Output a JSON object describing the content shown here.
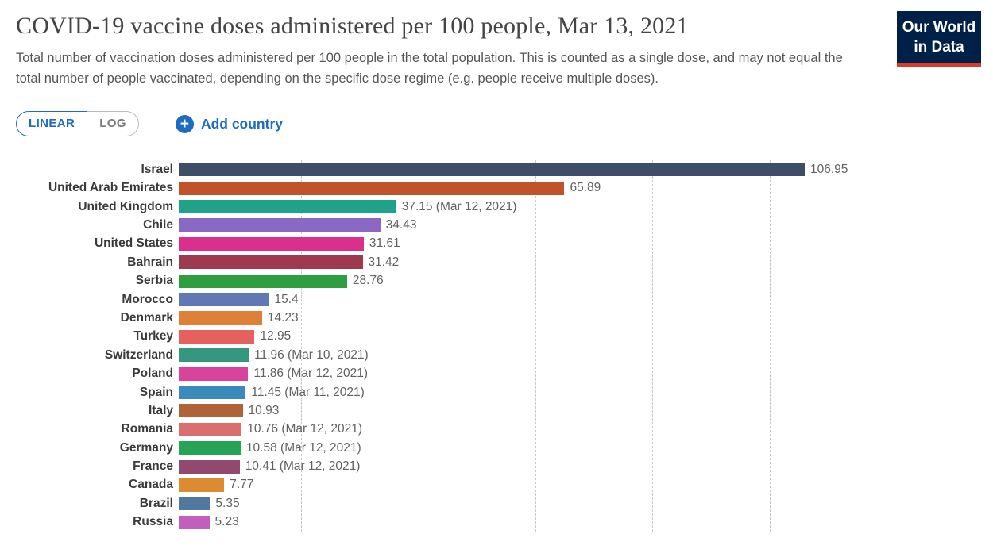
{
  "header": {
    "title": "COVID-19 vaccine doses administered per 100 people, Mar 13, 2021",
    "subtitle": "Total number of vaccination doses administered per 100 people in the total population. This is counted as a single dose, and may not equal the total number of people vaccinated, depending on the specific dose regime (e.g. people receive multiple doses).",
    "logo": {
      "line1": "Our World",
      "line2": "in Data",
      "bg_color": "#002147",
      "accent_color": "#d93a2b"
    }
  },
  "controls": {
    "scale_toggle": {
      "options": [
        {
          "label": "LINEAR",
          "active": true
        },
        {
          "label": "LOG",
          "active": false
        }
      ]
    },
    "add_country_label": "Add country",
    "accent_blue": "#1d6cc0"
  },
  "chart_data": {
    "type": "bar",
    "orientation": "horizontal",
    "title": "COVID-19 vaccine doses administered per 100 people, Mar 13, 2021",
    "xlabel": "",
    "ylabel": "",
    "xlim": [
      0,
      106.95
    ],
    "gridlines": [
      20,
      40,
      60,
      80,
      100
    ],
    "grid_style": "dashed",
    "legend": "none",
    "categories": [
      "Israel",
      "United Arab Emirates",
      "United Kingdom",
      "Chile",
      "United States",
      "Bahrain",
      "Serbia",
      "Morocco",
      "Denmark",
      "Turkey",
      "Switzerland",
      "Poland",
      "Spain",
      "Italy",
      "Romania",
      "Germany",
      "France",
      "Canada",
      "Brazil",
      "Russia"
    ],
    "values": [
      106.95,
      65.89,
      37.15,
      34.43,
      31.61,
      31.42,
      28.76,
      15.4,
      14.23,
      12.95,
      11.96,
      11.86,
      11.45,
      10.93,
      10.76,
      10.58,
      10.41,
      7.77,
      5.35,
      5.23
    ],
    "bars": [
      {
        "country": "Israel",
        "value": 106.95,
        "value_label": "106.95",
        "color": "#3d4e66"
      },
      {
        "country": "United Arab Emirates",
        "value": 65.89,
        "value_label": "65.89",
        "color": "#c1532b"
      },
      {
        "country": "United Kingdom",
        "value": 37.15,
        "value_label": "37.15 (Mar 12, 2021)",
        "color": "#1fa287"
      },
      {
        "country": "Chile",
        "value": 34.43,
        "value_label": "34.43",
        "color": "#8a68c4"
      },
      {
        "country": "United States",
        "value": 31.61,
        "value_label": "31.61",
        "color": "#db2f8d"
      },
      {
        "country": "Bahrain",
        "value": 31.42,
        "value_label": "31.42",
        "color": "#9e3a4f"
      },
      {
        "country": "Serbia",
        "value": 28.76,
        "value_label": "28.76",
        "color": "#2f9e41"
      },
      {
        "country": "Morocco",
        "value": 15.4,
        "value_label": "15.4",
        "color": "#6079b2"
      },
      {
        "country": "Denmark",
        "value": 14.23,
        "value_label": "14.23",
        "color": "#e08036"
      },
      {
        "country": "Turkey",
        "value": 12.95,
        "value_label": "12.95",
        "color": "#e5615e"
      },
      {
        "country": "Switzerland",
        "value": 11.96,
        "value_label": "11.96 (Mar 10, 2021)",
        "color": "#35977f"
      },
      {
        "country": "Poland",
        "value": 11.86,
        "value_label": "11.86 (Mar 12, 2021)",
        "color": "#d8439c"
      },
      {
        "country": "Spain",
        "value": 11.45,
        "value_label": "11.45 (Mar 11, 2021)",
        "color": "#3b8abc"
      },
      {
        "country": "Italy",
        "value": 10.93,
        "value_label": "10.93",
        "color": "#ae6437"
      },
      {
        "country": "Romania",
        "value": 10.76,
        "value_label": "10.76 (Mar 12, 2021)",
        "color": "#da6f6f"
      },
      {
        "country": "Germany",
        "value": 10.58,
        "value_label": "10.58 (Mar 12, 2021)",
        "color": "#27a356"
      },
      {
        "country": "France",
        "value": 10.41,
        "value_label": "10.41 (Mar 12, 2021)",
        "color": "#92486f"
      },
      {
        "country": "Canada",
        "value": 7.77,
        "value_label": "7.77",
        "color": "#dc8b32"
      },
      {
        "country": "Brazil",
        "value": 5.35,
        "value_label": "5.35",
        "color": "#51789f"
      },
      {
        "country": "Russia",
        "value": 5.23,
        "value_label": "5.23",
        "color": "#c060bc"
      }
    ]
  }
}
